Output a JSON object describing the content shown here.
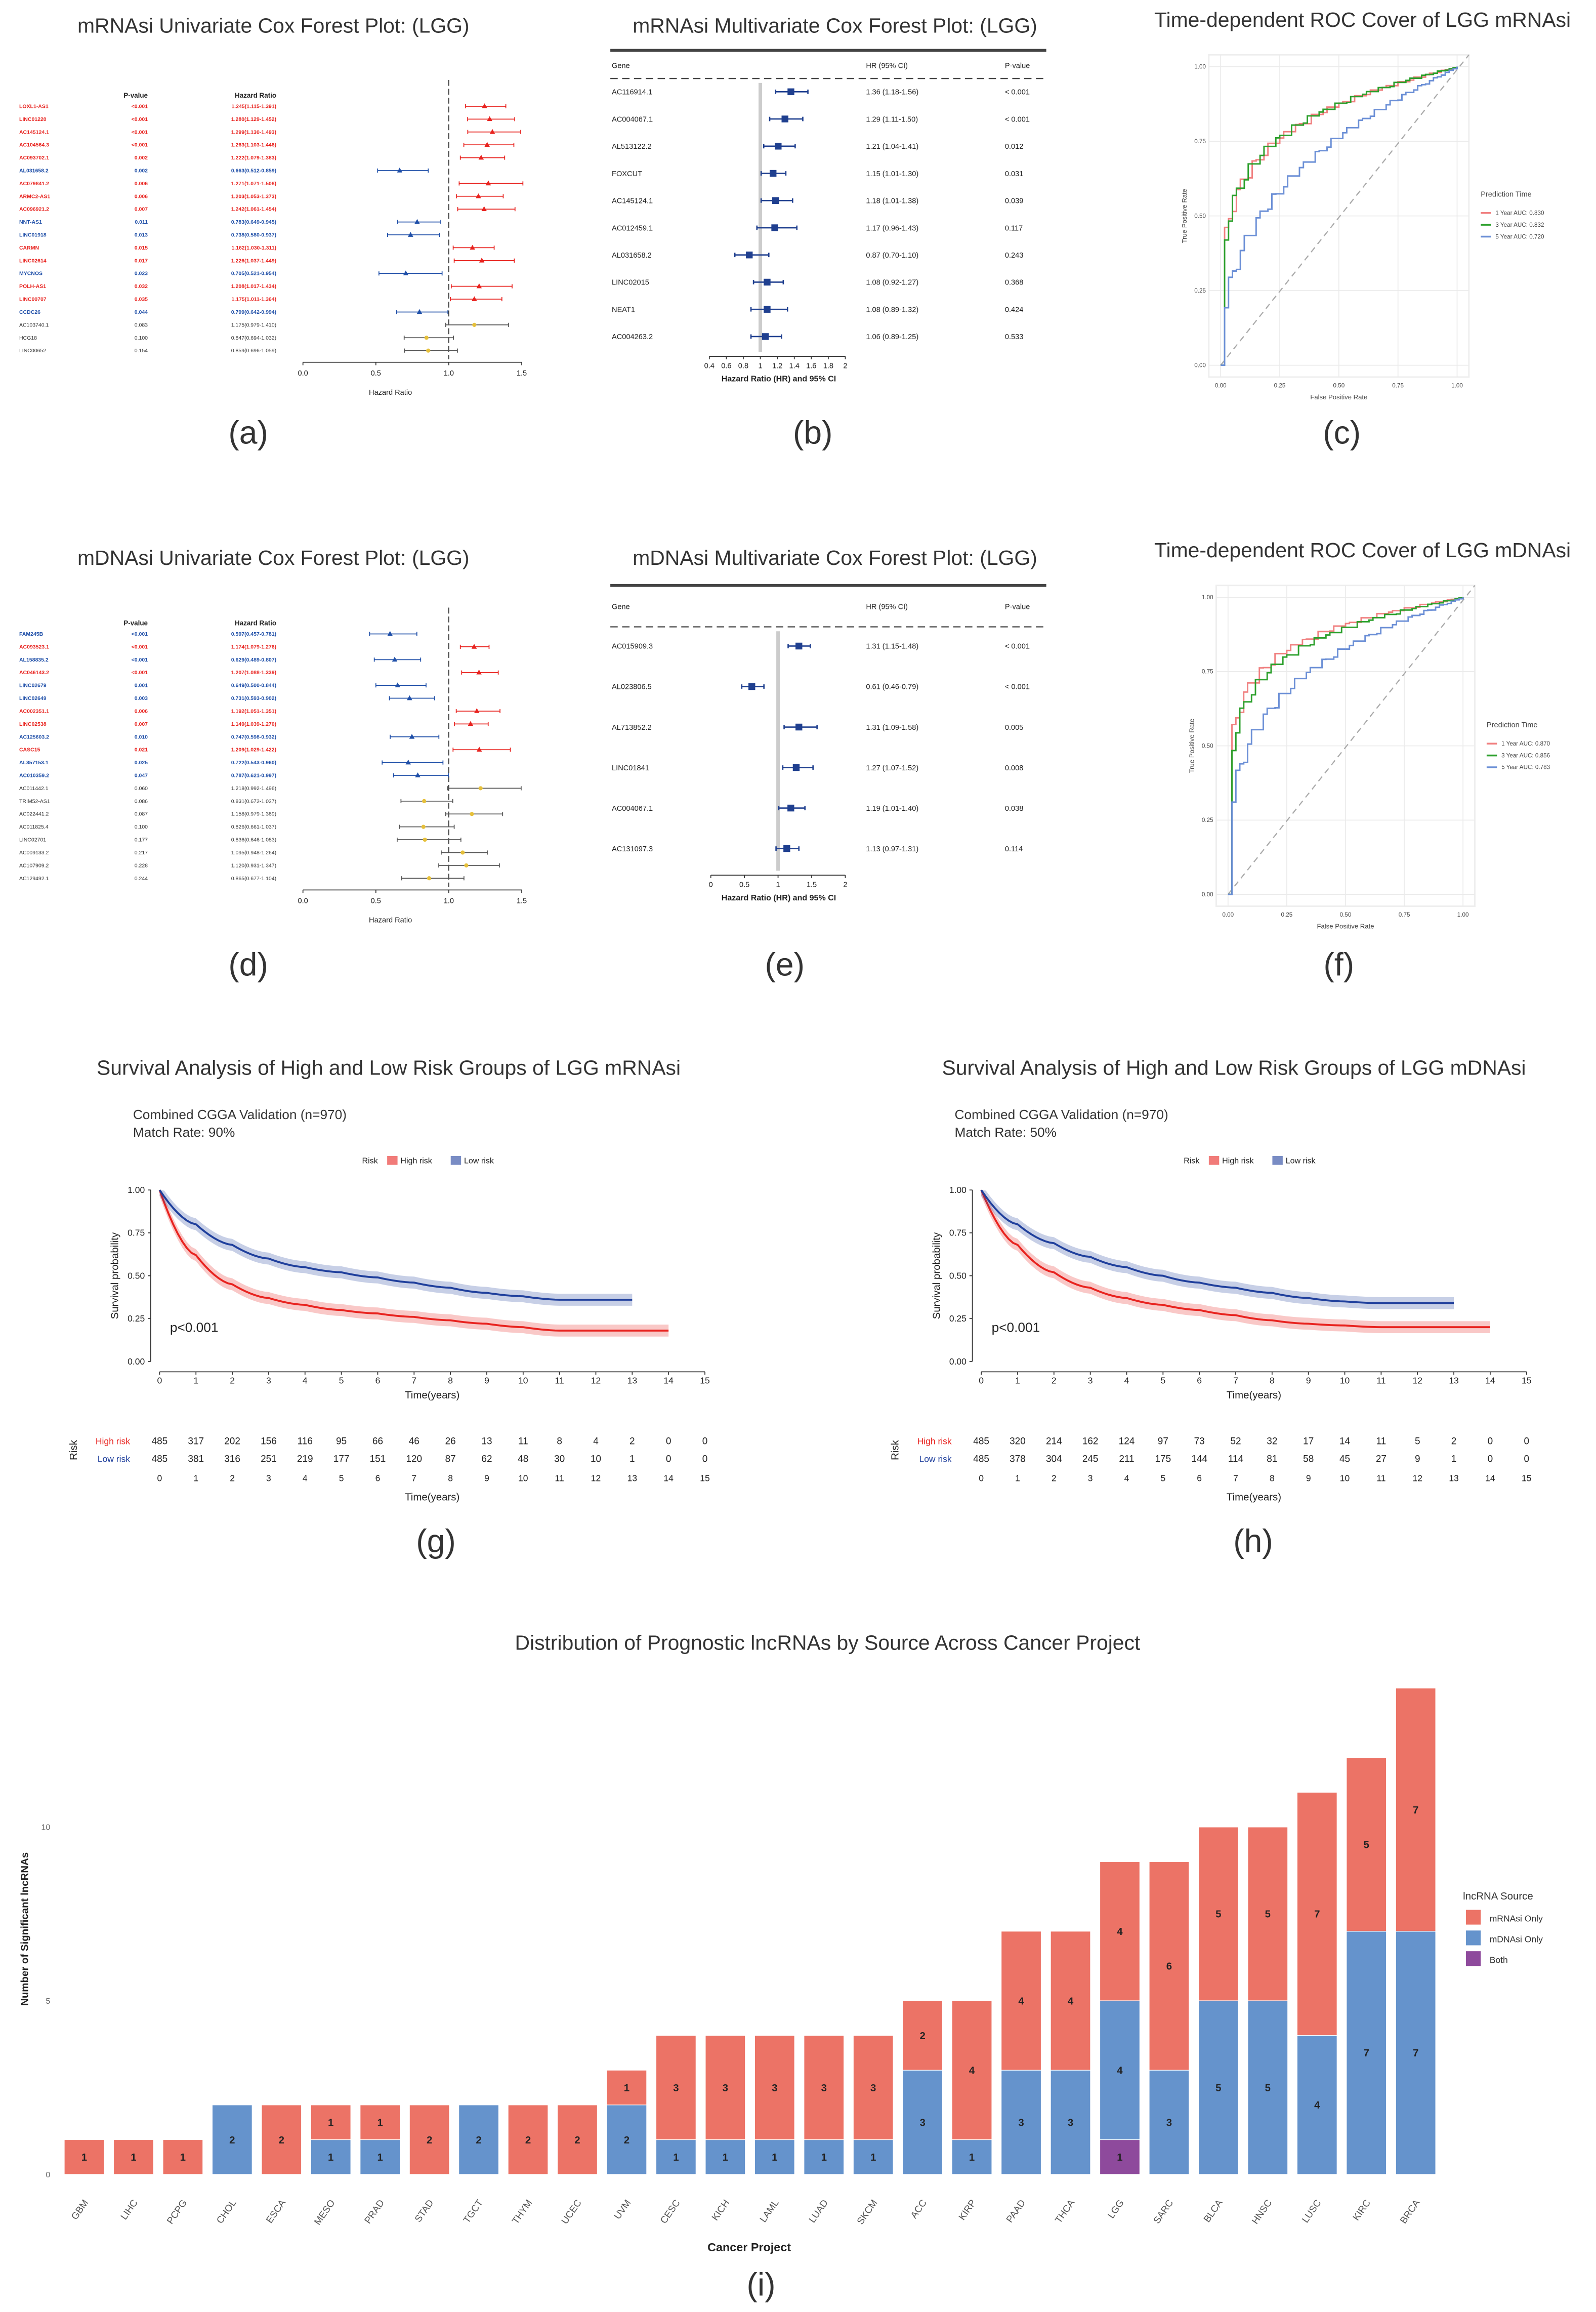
{
  "colors": {
    "up": "#e8231f",
    "down": "#1f4fa8",
    "ns": "#333333",
    "mrnasi": "#ec7366",
    "mdnasi": "#6593cc",
    "both": "#8e4a9c",
    "roc1": "#f08080",
    "roc3": "#2ca02c",
    "roc5": "#6b8fd6",
    "km_high": "#e8231f",
    "km_low": "#1f3f9c"
  },
  "panel_labels": [
    "(a)",
    "(b)",
    "(c)",
    "(d)",
    "(e)",
    "(f)",
    "(g)",
    "(h)",
    "(i)"
  ],
  "chart_data": [
    {
      "id": "a",
      "type": "forest",
      "title": "mRNAsi Univariate Cox Forest Plot:  (LGG)",
      "headers": [
        "P-value",
        "Hazard Ratio"
      ],
      "xlabel": "Hazard Ratio",
      "ticks": [
        "0.0",
        "0.5",
        "1.0",
        "1.5"
      ],
      "rows": [
        [
          "LOXL1-AS1",
          "<0.001",
          "1.245(1.115-1.391)",
          "up"
        ],
        [
          "LINC01220",
          "<0.001",
          "1.280(1.129-1.452)",
          "up"
        ],
        [
          "AC145124.1",
          "<0.001",
          "1.299(1.130-1.493)",
          "up"
        ],
        [
          "AC104564.3",
          "<0.001",
          "1.263(1.103-1.446)",
          "up"
        ],
        [
          "AC093702.1",
          "0.002",
          "1.222(1.079-1.383)",
          "up"
        ],
        [
          "AL031658.2",
          "0.002",
          "0.663(0.512-0.859)",
          "down"
        ],
        [
          "AC079841.2",
          "0.006",
          "1.271(1.071-1.508)",
          "up"
        ],
        [
          "ARMC2-AS1",
          "0.006",
          "1.203(1.053-1.373)",
          "up"
        ],
        [
          "AC096921.2",
          "0.007",
          "1.242(1.061-1.454)",
          "up"
        ],
        [
          "NNT-AS1",
          "0.011",
          "0.783(0.649-0.945)",
          "down"
        ],
        [
          "LINC01918",
          "0.013",
          "0.738(0.580-0.937)",
          "down"
        ],
        [
          "CARMN",
          "0.015",
          "1.162(1.030-1.311)",
          "up"
        ],
        [
          "LINC02614",
          "0.017",
          "1.226(1.037-1.449)",
          "up"
        ],
        [
          "MYCNOS",
          "0.023",
          "0.705(0.521-0.954)",
          "down"
        ],
        [
          "POLH-AS1",
          "0.032",
          "1.208(1.017-1.434)",
          "up"
        ],
        [
          "LINC00707",
          "0.035",
          "1.175(1.011-1.364)",
          "up"
        ],
        [
          "CCDC26",
          "0.044",
          "0.799(0.642-0.994)",
          "down"
        ],
        [
          "AC103740.1",
          "0.083",
          "1.175(0.979-1.410)",
          "ns"
        ],
        [
          "HCG18",
          "0.100",
          "0.847(0.694-1.032)",
          "ns"
        ],
        [
          "LINC00652",
          "0.154",
          "0.859(0.696-1.059)",
          "ns"
        ]
      ]
    },
    {
      "id": "b",
      "type": "forest",
      "title": "mRNAsi Multivariate Cox Forest Plot:  (LGG)",
      "headers": [
        "Gene",
        "HR (95% CI)",
        "P-value"
      ],
      "xlabel": "Hazard Ratio (HR) and 95% CI",
      "ticks": [
        "0.4",
        "0.6",
        "0.8",
        "1",
        "1.2",
        "1.4",
        "1.6",
        "1.8",
        "2"
      ],
      "rows": [
        [
          "AC116914.1",
          "1.36 (1.18-1.56)",
          "< 0.001"
        ],
        [
          "AC004067.1",
          "1.29 (1.11-1.50)",
          "< 0.001"
        ],
        [
          "AL513122.2",
          "1.21 (1.04-1.41)",
          "0.012"
        ],
        [
          "FOXCUT",
          "1.15 (1.01-1.30)",
          "0.031"
        ],
        [
          "AC145124.1",
          "1.18 (1.01-1.38)",
          "0.039"
        ],
        [
          "AC012459.1",
          "1.17 (0.96-1.43)",
          "0.117"
        ],
        [
          "AL031658.2",
          "0.87 (0.70-1.10)",
          "0.243"
        ],
        [
          "LINC02015",
          "1.08 (0.92-1.27)",
          "0.368"
        ],
        [
          "NEAT1",
          "1.08 (0.89-1.32)",
          "0.424"
        ],
        [
          "AC004263.2",
          "1.06 (0.89-1.25)",
          "0.533"
        ]
      ]
    },
    {
      "id": "c",
      "type": "line",
      "title": "Time-dependent ROC Cover of LGG mRNAsi",
      "xlabel": "False Positive Rate",
      "ylabel": "True Positive Rate",
      "ticks": [
        "0.00",
        "0.25",
        "0.50",
        "0.75",
        "1.00"
      ],
      "legend_title": "Prediction Time",
      "series": [
        {
          "name": "1 Year AUC: 0.830",
          "auc": 0.83
        },
        {
          "name": "3 Year AUC: 0.832",
          "auc": 0.832
        },
        {
          "name": "5 Year AUC: 0.720",
          "auc": 0.72
        }
      ]
    },
    {
      "id": "d",
      "type": "forest",
      "title": "mDNAsi Univariate Cox Forest Plot:  (LGG)",
      "headers": [
        "P-value",
        "Hazard Ratio"
      ],
      "xlabel": "Hazard Ratio",
      "ticks": [
        "0.0",
        "0.5",
        "1.0",
        "1.5"
      ],
      "rows": [
        [
          "FAM245B",
          "<0.001",
          "0.597(0.457-0.781)",
          "down"
        ],
        [
          "AC093523.1",
          "<0.001",
          "1.174(1.079-1.276)",
          "up"
        ],
        [
          "AL158835.2",
          "<0.001",
          "0.629(0.489-0.807)",
          "down"
        ],
        [
          "AC046143.2",
          "<0.001",
          "1.207(1.088-1.339)",
          "up"
        ],
        [
          "LINC02679",
          "0.001",
          "0.649(0.500-0.844)",
          "down"
        ],
        [
          "LINC02649",
          "0.003",
          "0.731(0.593-0.902)",
          "down"
        ],
        [
          "AC002351.1",
          "0.006",
          "1.192(1.051-1.351)",
          "up"
        ],
        [
          "LINC02538",
          "0.007",
          "1.149(1.039-1.270)",
          "up"
        ],
        [
          "AC125603.2",
          "0.010",
          "0.747(0.598-0.932)",
          "down"
        ],
        [
          "CASC15",
          "0.021",
          "1.209(1.029-1.422)",
          "up"
        ],
        [
          "AL357153.1",
          "0.025",
          "0.722(0.543-0.960)",
          "down"
        ],
        [
          "AC010359.2",
          "0.047",
          "0.787(0.621-0.997)",
          "down"
        ],
        [
          "AC011442.1",
          "0.060",
          "1.218(0.992-1.496)",
          "ns"
        ],
        [
          "TRIM52-AS1",
          "0.086",
          "0.831(0.672-1.027)",
          "ns"
        ],
        [
          "AC022441.2",
          "0.087",
          "1.158(0.979-1.369)",
          "ns"
        ],
        [
          "AC011825.4",
          "0.100",
          "0.826(0.661-1.037)",
          "ns"
        ],
        [
          "LINC02701",
          "0.177",
          "0.836(0.646-1.083)",
          "ns"
        ],
        [
          "AC009133.2",
          "0.217",
          "1.095(0.948-1.264)",
          "ns"
        ],
        [
          "AC107909.2",
          "0.228",
          "1.120(0.931-1.347)",
          "ns"
        ],
        [
          "AC129492.1",
          "0.244",
          "0.865(0.677-1.104)",
          "ns"
        ]
      ]
    },
    {
      "id": "e",
      "type": "forest",
      "title": "mDNAsi Multivariate Cox Forest Plot:  (LGG)",
      "headers": [
        "Gene",
        "HR (95% CI)",
        "P-value"
      ],
      "xlabel": "Hazard Ratio (HR) and 95% CI",
      "ticks": [
        "0",
        "0.5",
        "1",
        "1.5",
        "2"
      ],
      "rows": [
        [
          "AC015909.3",
          "1.31 (1.15-1.48)",
          "< 0.001"
        ],
        [
          "AL023806.5",
          "0.61 (0.46-0.79)",
          "< 0.001"
        ],
        [
          "AL713852.2",
          "1.31 (1.09-1.58)",
          "0.005"
        ],
        [
          "LINC01841",
          "1.27 (1.07-1.52)",
          "0.008"
        ],
        [
          "AC004067.1",
          "1.19 (1.01-1.40)",
          "0.038"
        ],
        [
          "AC131097.3",
          "1.13 (0.97-1.31)",
          "0.114"
        ]
      ]
    },
    {
      "id": "f",
      "type": "line",
      "title": "Time-dependent ROC Cover of LGG mDNAsi",
      "xlabel": "False Positive Rate",
      "ylabel": "True Positive Rate",
      "ticks": [
        "0.00",
        "0.25",
        "0.50",
        "0.75",
        "1.00"
      ],
      "legend_title": "Prediction Time",
      "series": [
        {
          "name": "1 Year AUC: 0.870",
          "auc": 0.87
        },
        {
          "name": "3 Year AUC: 0.856",
          "auc": 0.856
        },
        {
          "name": "5 Year AUC: 0.783",
          "auc": 0.783
        }
      ]
    },
    {
      "id": "g",
      "type": "line",
      "title": "Survival Analysis of High and Low Risk Groups of LGG mRNAsi",
      "subtitle": [
        "Combined CGGA Validation (n=970)",
        "Match Rate: 90%"
      ],
      "legend": [
        "Risk",
        "High risk",
        "Low risk"
      ],
      "ylabel": "Survival probability",
      "xlabel": "Time(years)",
      "yticks": [
        "0.00",
        "0.25",
        "0.50",
        "0.75",
        "1.00"
      ],
      "xticks": [
        "0",
        "1",
        "2",
        "3",
        "4",
        "5",
        "6",
        "7",
        "8",
        "9",
        "10",
        "11",
        "12",
        "13",
        "14",
        "15"
      ],
      "pvalue": "p<0.001",
      "risk_label": "Risk",
      "series": [
        {
          "name": "High risk",
          "survival": [
            1,
            0.62,
            0.45,
            0.37,
            0.33,
            0.3,
            0.28,
            0.26,
            0.24,
            0.22,
            0.2,
            0.18,
            0.18,
            0.18,
            0.18
          ],
          "at_risk": [
            "485",
            "317",
            "202",
            "156",
            "116",
            "95",
            "66",
            "46",
            "26",
            "13",
            "11",
            "8",
            "4",
            "2",
            "0",
            "0"
          ]
        },
        {
          "name": "Low risk",
          "survival": [
            1,
            0.8,
            0.68,
            0.6,
            0.55,
            0.52,
            0.49,
            0.46,
            0.43,
            0.4,
            0.38,
            0.36,
            0.36,
            0.36
          ],
          "at_risk": [
            "485",
            "381",
            "316",
            "251",
            "219",
            "177",
            "151",
            "120",
            "87",
            "62",
            "48",
            "30",
            "10",
            "1",
            "0",
            "0"
          ]
        }
      ]
    },
    {
      "id": "h",
      "type": "line",
      "title": "Survival Analysis of High and Low Risk Groups of LGG mDNAsi",
      "subtitle": [
        "Combined CGGA Validation (n=970)",
        "Match Rate: 50%"
      ],
      "legend": [
        "Risk",
        "High risk",
        "Low risk"
      ],
      "ylabel": "Survival probability",
      "xlabel": "Time(years)",
      "yticks": [
        "0.00",
        "0.25",
        "0.50",
        "0.75",
        "1.00"
      ],
      "xticks": [
        "0",
        "1",
        "2",
        "3",
        "4",
        "5",
        "6",
        "7",
        "8",
        "9",
        "10",
        "11",
        "12",
        "13",
        "14",
        "15"
      ],
      "pvalue": "p<0.001",
      "risk_label": "Risk",
      "series": [
        {
          "name": "High risk",
          "survival": [
            1,
            0.68,
            0.52,
            0.43,
            0.37,
            0.33,
            0.3,
            0.27,
            0.24,
            0.22,
            0.21,
            0.2,
            0.2,
            0.2,
            0.2
          ],
          "at_risk": [
            "485",
            "320",
            "214",
            "162",
            "124",
            "97",
            "73",
            "52",
            "32",
            "17",
            "14",
            "11",
            "5",
            "2",
            "0",
            "0"
          ]
        },
        {
          "name": "Low risk",
          "survival": [
            1,
            0.8,
            0.69,
            0.61,
            0.55,
            0.5,
            0.46,
            0.43,
            0.4,
            0.37,
            0.35,
            0.34,
            0.34,
            0.34
          ],
          "at_risk": [
            "485",
            "378",
            "304",
            "245",
            "211",
            "175",
            "144",
            "114",
            "81",
            "58",
            "45",
            "27",
            "9",
            "1",
            "0",
            "0"
          ]
        }
      ]
    },
    {
      "id": "i",
      "type": "bar",
      "title": "Distribution of Prognostic lncRNAs by Source Across Cancer Project",
      "xlabel": "Cancer Project",
      "ylabel": "Number of Significant lncRNAs",
      "yticks": [
        "0",
        "5",
        "10"
      ],
      "ylim": [
        0,
        14
      ],
      "legend_title": "lncRNA Source",
      "legend": [
        "mRNAsi Only",
        "mDNAsi Only",
        "Both"
      ],
      "categories": [
        "GBM",
        "LIHC",
        "PCPG",
        "CHOL",
        "ESCA",
        "MESO",
        "PRAD",
        "STAD",
        "TGCT",
        "THYM",
        "UCEC",
        "UVM",
        "CESC",
        "KICH",
        "LAML",
        "LUAD",
        "SKCM",
        "ACC",
        "KIRP",
        "PAAD",
        "THCA",
        "LGG",
        "SARC",
        "BLCA",
        "HNSC",
        "LUSC",
        "KIRC",
        "BRCA"
      ],
      "series": [
        {
          "name": "Both",
          "values": [
            0,
            0,
            0,
            0,
            0,
            0,
            0,
            0,
            0,
            0,
            0,
            0,
            0,
            0,
            0,
            0,
            0,
            0,
            0,
            0,
            0,
            1,
            0,
            0,
            0,
            0,
            0,
            0
          ]
        },
        {
          "name": "mDNAsi Only",
          "values": [
            0,
            0,
            0,
            2,
            0,
            1,
            1,
            0,
            2,
            0,
            0,
            2,
            1,
            1,
            1,
            1,
            1,
            3,
            1,
            3,
            3,
            4,
            3,
            5,
            5,
            4,
            7,
            7
          ]
        },
        {
          "name": "mRNAsi Only",
          "values": [
            1,
            1,
            1,
            0,
            2,
            1,
            1,
            2,
            0,
            2,
            2,
            1,
            3,
            3,
            3,
            3,
            3,
            2,
            4,
            4,
            4,
            4,
            6,
            5,
            5,
            7,
            5,
            7
          ]
        }
      ]
    }
  ]
}
